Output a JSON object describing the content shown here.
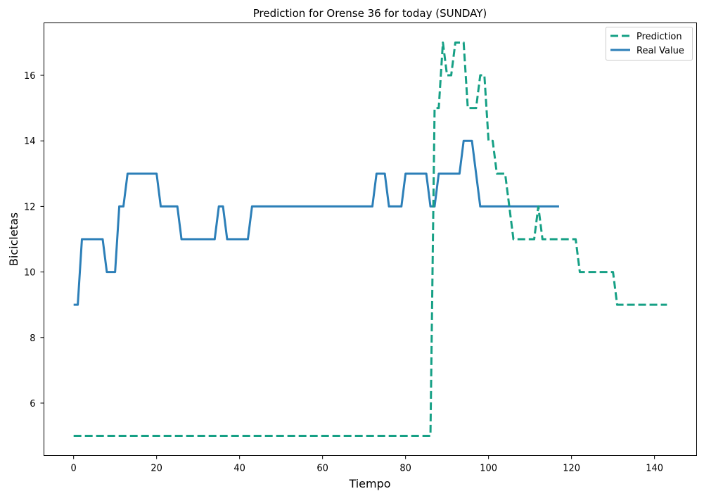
{
  "chart_data": {
    "type": "line",
    "title": "Prediction for Orense 36 for today (SUNDAY)",
    "xlabel": "Tiempo",
    "ylabel": "Bicicletas",
    "xlim": [
      -7.15,
      150.15
    ],
    "ylim": [
      4.4,
      17.6
    ],
    "xticks": [
      0,
      20,
      40,
      60,
      80,
      100,
      120,
      140
    ],
    "yticks": [
      6,
      8,
      10,
      12,
      14,
      16
    ],
    "grid": false,
    "legend_position": "top-right",
    "series": [
      {
        "name": "Prediction",
        "color": "#16a085",
        "style": "dashed",
        "values": [
          5,
          5,
          5,
          5,
          5,
          5,
          5,
          5,
          5,
          5,
          5,
          5,
          5,
          5,
          5,
          5,
          5,
          5,
          5,
          5,
          5,
          5,
          5,
          5,
          5,
          5,
          5,
          5,
          5,
          5,
          5,
          5,
          5,
          5,
          5,
          5,
          5,
          5,
          5,
          5,
          5,
          5,
          5,
          5,
          5,
          5,
          5,
          5,
          5,
          5,
          5,
          5,
          5,
          5,
          5,
          5,
          5,
          5,
          5,
          5,
          5,
          5,
          5,
          5,
          5,
          5,
          5,
          5,
          5,
          5,
          5,
          5,
          5,
          5,
          5,
          5,
          5,
          5,
          5,
          5,
          5,
          5,
          5,
          5,
          5,
          5,
          5,
          15,
          15,
          17,
          16,
          16,
          17,
          17,
          17,
          15,
          15,
          15,
          16,
          16,
          14,
          14,
          13,
          13,
          13,
          12,
          11,
          11,
          11,
          11,
          11,
          11,
          12,
          11,
          11,
          11,
          11,
          11,
          11,
          11,
          11,
          11,
          10,
          10,
          10,
          10,
          10,
          10,
          10,
          10,
          10,
          9,
          9,
          9,
          9,
          9,
          9,
          9,
          9,
          9,
          9,
          9,
          9,
          9
        ]
      },
      {
        "name": "Real Value",
        "color": "#2c7fb8",
        "style": "solid",
        "values": [
          9,
          9,
          11,
          11,
          11,
          11,
          11,
          11,
          10,
          10,
          10,
          12,
          12,
          13,
          13,
          13,
          13,
          13,
          13,
          13,
          13,
          12,
          12,
          12,
          12,
          12,
          11,
          11,
          11,
          11,
          11,
          11,
          11,
          11,
          11,
          12,
          12,
          11,
          11,
          11,
          11,
          11,
          11,
          12,
          12,
          12,
          12,
          12,
          12,
          12,
          12,
          12,
          12,
          12,
          12,
          12,
          12,
          12,
          12,
          12,
          12,
          12,
          12,
          12,
          12,
          12,
          12,
          12,
          12,
          12,
          12,
          12,
          12,
          13,
          13,
          13,
          12,
          12,
          12,
          12,
          13,
          13,
          13,
          13,
          13,
          13,
          12,
          12,
          13,
          13,
          13,
          13,
          13,
          13,
          14,
          14,
          14,
          13,
          12,
          12,
          12,
          12,
          12,
          12,
          12,
          12,
          12,
          12,
          12,
          12,
          12,
          12,
          12,
          12,
          12,
          12,
          12,
          12
        ]
      }
    ]
  }
}
